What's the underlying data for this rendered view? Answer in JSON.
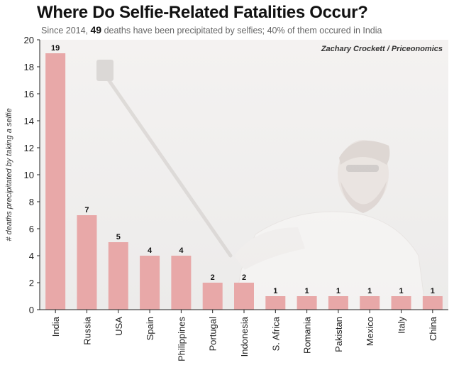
{
  "chart_data": {
    "type": "bar",
    "title": "Where Do Selfie-Related Fatalities Occur?",
    "subtitle_pre": "Since 2014,",
    "subtitle_num": "49",
    "subtitle_post": "deaths have been precipitated by selfies; 40% of them occured in India",
    "credit": "Zachary Crockett / Priceonomics",
    "xlabel": "",
    "ylabel": "# deaths precipitated by taking a selfie",
    "categories": [
      "India",
      "Russia",
      "USA",
      "Spain",
      "Philippines",
      "Portugal",
      "Indonesia",
      "S. Africa",
      "Romania",
      "Pakistan",
      "Mexico",
      "Italy",
      "China"
    ],
    "values": [
      19,
      7,
      5,
      4,
      4,
      2,
      2,
      1,
      1,
      1,
      1,
      1,
      1
    ],
    "ylim": [
      0,
      20
    ],
    "yticks": [
      0,
      2,
      4,
      6,
      8,
      10,
      12,
      14,
      16,
      18,
      20
    ],
    "bar_color": "#e8a8a8",
    "grid": false
  }
}
